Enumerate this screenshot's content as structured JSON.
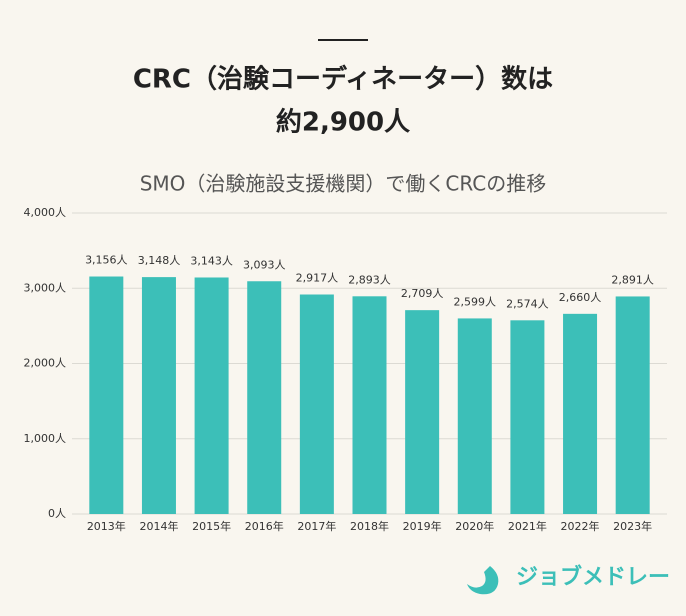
{
  "headline": [
    "CRC（治験コーディネーター）数は",
    "約2,900人"
  ],
  "chart_data": {
    "type": "bar",
    "title": "SMO（治験施設支援機関）で働くCRCの推移",
    "categories": [
      "2013年",
      "2014年",
      "2015年",
      "2016年",
      "2017年",
      "2018年",
      "2019年",
      "2020年",
      "2021年",
      "2022年",
      "2023年"
    ],
    "values": [
      3156,
      3148,
      3143,
      3093,
      2917,
      2893,
      2709,
      2599,
      2574,
      2660,
      2891
    ],
    "value_labels": [
      "3,156人",
      "3,148人",
      "3,143人",
      "3,093人",
      "2,917人",
      "2,893人",
      "2,709人",
      "2,599人",
      "2,574人",
      "2,660人",
      "2,891人"
    ],
    "color": "#3cbfb8",
    "ylim": [
      0,
      4000
    ],
    "yticks": [
      {
        "value": 0,
        "label": "0人"
      },
      {
        "value": 1000,
        "label": "1,000人"
      },
      {
        "value": 2000,
        "label": "2,000人"
      },
      {
        "value": 3000,
        "label": "3,000人"
      },
      {
        "value": 4000,
        "label": "4,000人"
      }
    ],
    "grid": true
  },
  "footer": {
    "logo": "ジョブメドレー"
  }
}
